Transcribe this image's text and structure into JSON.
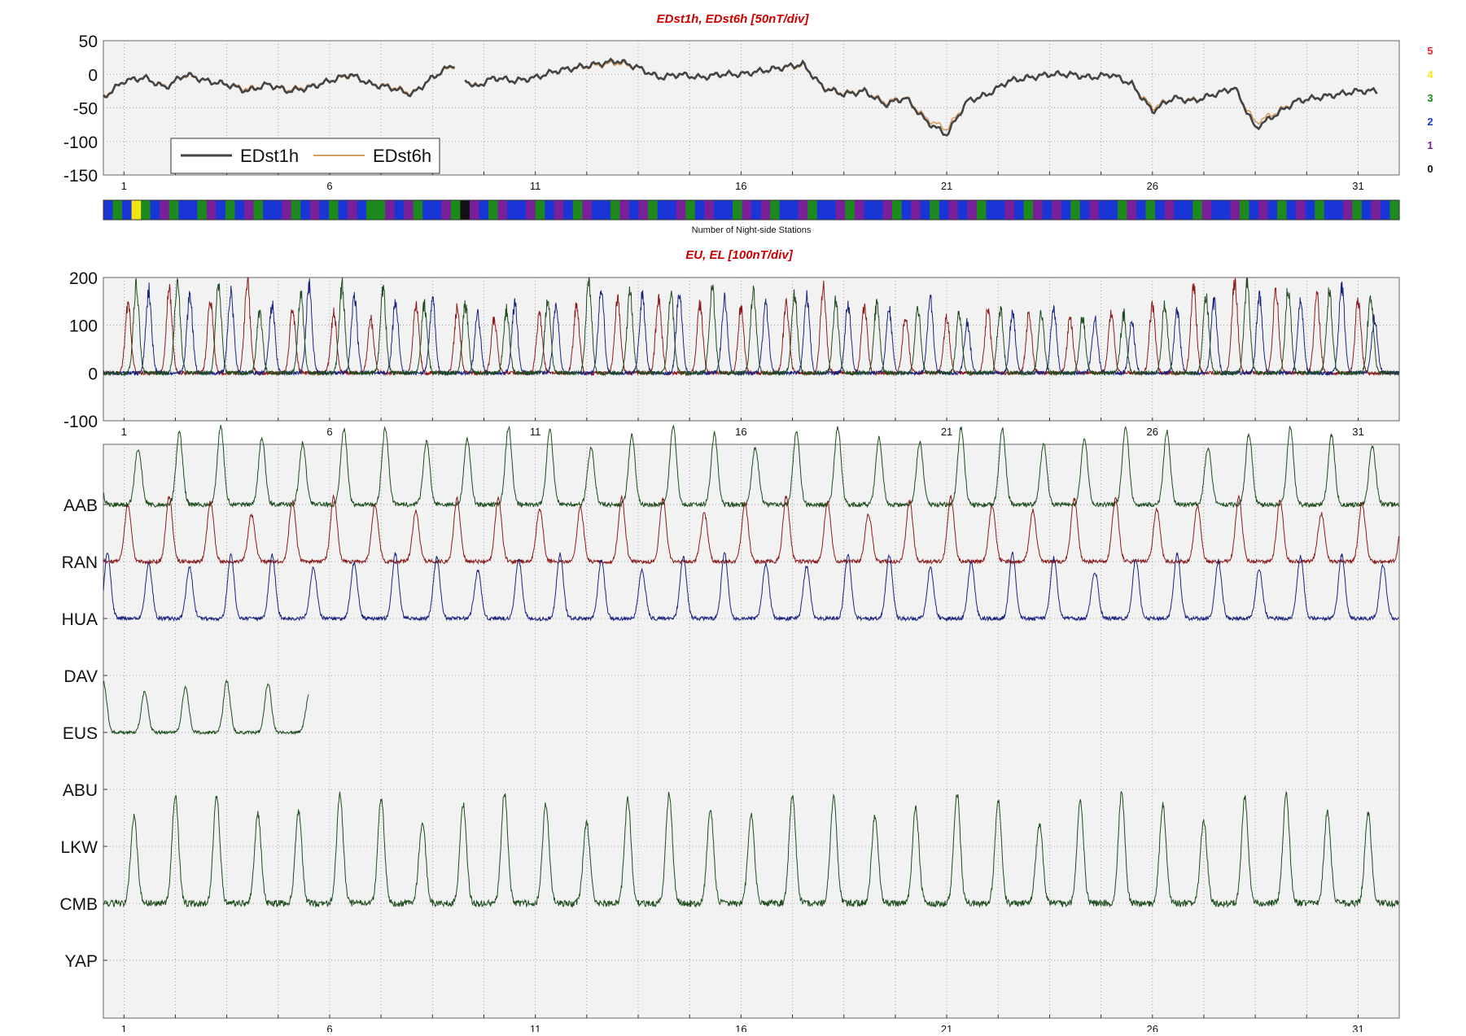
{
  "colors": {
    "title": "#cc0000",
    "panel_bg": "#f2f2f2",
    "grid": "#8a8a8a",
    "edst1h": "#444444",
    "edst6h": "#d9a066",
    "red": "#8b1a1a",
    "blue": "#1a237e",
    "green": "#1e4d1e"
  },
  "chart_data": [
    {
      "type": "line",
      "title": "EDst1h, EDst6h [50nT/div]",
      "ylim": [
        -150,
        50
      ],
      "yticks": [
        "50",
        "0",
        "-50",
        "-100",
        "-150"
      ],
      "xlim": [
        0.5,
        32
      ],
      "xticks": [
        "1",
        "6",
        "11",
        "16",
        "21",
        "26",
        "31"
      ],
      "legend": {
        "placement": "lower-left",
        "entries": [
          "EDst1h",
          "EDst6h"
        ]
      },
      "grid": true,
      "series": [
        {
          "name": "EDst1h",
          "color": "#444444",
          "x": [
            0.5,
            1,
            1.5,
            2,
            2.5,
            3,
            3.5,
            4,
            4.5,
            5,
            5.5,
            6,
            6.5,
            7,
            7.5,
            8,
            8.5,
            9,
            9.5,
            10,
            10.5,
            11,
            11.5,
            12,
            12.5,
            13,
            13.5,
            14,
            14.5,
            15,
            15.5,
            16,
            16.5,
            17,
            17.5,
            18,
            18.5,
            19,
            19.5,
            20,
            20.5,
            21,
            21.5,
            22,
            22.5,
            23,
            23.5,
            24,
            24.5,
            25,
            25.5,
            26,
            26.5,
            27,
            27.5,
            28,
            28.5,
            29,
            29.5,
            30,
            30.5,
            31,
            31.5
          ],
          "y": [
            -35,
            -10,
            -5,
            -20,
            0,
            -10,
            -15,
            -25,
            -15,
            -25,
            -20,
            -10,
            0,
            -15,
            -20,
            -30,
            -5,
            15,
            -20,
            -5,
            -10,
            -5,
            5,
            10,
            15,
            20,
            10,
            -5,
            0,
            -5,
            0,
            0,
            5,
            10,
            15,
            -20,
            -30,
            -25,
            -45,
            -35,
            -70,
            -90,
            -40,
            -30,
            -10,
            -5,
            0,
            0,
            -5,
            0,
            -15,
            -55,
            -35,
            -40,
            -30,
            -20,
            -80,
            -60,
            -40,
            -35,
            -30,
            -25,
            -25
          ]
        },
        {
          "name": "EDst6h",
          "color": "#d9a066",
          "x": [
            0.5,
            1,
            1.5,
            2,
            2.5,
            3,
            3.5,
            4,
            4.5,
            5,
            5.5,
            6,
            6.5,
            7,
            7.5,
            8,
            8.5,
            9,
            9.5,
            10,
            10.5,
            11,
            11.5,
            12,
            12.5,
            13,
            13.5,
            14,
            14.5,
            15,
            15.5,
            16,
            16.5,
            17,
            17.5,
            18,
            18.5,
            19,
            19.5,
            20,
            20.5,
            21,
            21.5,
            22,
            22.5,
            23,
            23.5,
            24,
            24.5,
            25,
            25.5,
            26,
            26.5,
            27,
            27.5,
            28,
            28.5,
            29,
            29.5,
            30,
            30.5,
            31,
            31.5
          ],
          "y": [
            -33,
            -10,
            -6,
            -18,
            -2,
            -10,
            -14,
            -22,
            -15,
            -23,
            -18,
            -10,
            -2,
            -14,
            -18,
            -28,
            -6,
            13,
            -18,
            -6,
            -9,
            -5,
            4,
            9,
            13,
            17,
            9,
            -5,
            -1,
            -5,
            -1,
            0,
            4,
            9,
            13,
            -19,
            -28,
            -24,
            -42,
            -34,
            -66,
            -82,
            -40,
            -30,
            -11,
            -6,
            -1,
            -1,
            -5,
            -1,
            -15,
            -50,
            -35,
            -38,
            -30,
            -21,
            -72,
            -57,
            -39,
            -34,
            -29,
            -25,
            -25
          ]
        }
      ]
    },
    {
      "type": "heatmap",
      "xlabel": "Number of Night-side Stations",
      "legend": {
        "placement": "right",
        "entries": [
          {
            "label": "5",
            "color": "#e8252a"
          },
          {
            "label": "4",
            "color": "#f5e414"
          },
          {
            "label": "3",
            "color": "#1c8a1c"
          },
          {
            "label": "2",
            "color": "#1a35d6"
          },
          {
            "label": "1",
            "color": "#7a1f9a"
          },
          {
            "label": "0",
            "color": "#111111"
          }
        ]
      },
      "xlim": [
        0.5,
        32
      ],
      "values": [
        2,
        3,
        2,
        4,
        3,
        2,
        1,
        3,
        2,
        2,
        3,
        1,
        2,
        3,
        2,
        1,
        3,
        2,
        2,
        1,
        3,
        2,
        1,
        2,
        3,
        2,
        1,
        2,
        3,
        3,
        1,
        2,
        1,
        3,
        2,
        2,
        1,
        3,
        0,
        1,
        2,
        3,
        1,
        2,
        2,
        1,
        3,
        2,
        1,
        2,
        3,
        1,
        2,
        2,
        3,
        1,
        2,
        1,
        3,
        2,
        2,
        1,
        3,
        2,
        1,
        2,
        2,
        3,
        1,
        2,
        1,
        3,
        2,
        2,
        1,
        3,
        2,
        2,
        1,
        3,
        1,
        2,
        2,
        1,
        3,
        2,
        1,
        2,
        3,
        2,
        1,
        2,
        1,
        3,
        2,
        2,
        1,
        2,
        3,
        1,
        2,
        1,
        2,
        3,
        2,
        1,
        2,
        2,
        3,
        1,
        2,
        3,
        2,
        1,
        2,
        2,
        3,
        1,
        2,
        2,
        1,
        3,
        2,
        1,
        2,
        3,
        2,
        1,
        2,
        3,
        2,
        2,
        1,
        3,
        2,
        1,
        2,
        3
      ]
    },
    {
      "type": "line",
      "title": "EU, EL   [100nT/div]",
      "ylim": [
        -100,
        200
      ],
      "yticks": [
        "200",
        "100",
        "0",
        "-100"
      ],
      "xlim": [
        0.5,
        32
      ],
      "xticks": [
        "1",
        "6",
        "11",
        "16",
        "21",
        "26",
        "31"
      ],
      "grid": true,
      "series": [
        {
          "color": "#8b1a1a",
          "peak_days": [
            1.1,
            2.1,
            3.1,
            4.0,
            5.1,
            6.1,
            7.0,
            8.1,
            9.1,
            10.0,
            11.1,
            12.0,
            13.0,
            14.0,
            15.0,
            16.0,
            17.1,
            18.0,
            19.0,
            20.0,
            21.0,
            22.0,
            23.0,
            24.0,
            25.0,
            26.0,
            27.0,
            28.0,
            29.0,
            30.0,
            31.0
          ],
          "peak_values": [
            150,
            180,
            160,
            200,
            140,
            130,
            120,
            150,
            140,
            120,
            130,
            150,
            160,
            170,
            150,
            140,
            150,
            190,
            150,
            130,
            120,
            140,
            130,
            120,
            130,
            150,
            190,
            200,
            180,
            170,
            160
          ]
        },
        {
          "color": "#1a237e",
          "peak_days": [
            1.6,
            2.6,
            3.6,
            4.6,
            5.5,
            6.6,
            7.6,
            8.5,
            9.6,
            10.5,
            11.5,
            12.6,
            13.6,
            14.5,
            15.6,
            16.6,
            17.6,
            18.6,
            19.6,
            20.6,
            21.5,
            22.6,
            23.6,
            24.6,
            25.5,
            26.6,
            27.5,
            28.6,
            29.6,
            30.6,
            31.4
          ],
          "peak_values": [
            180,
            170,
            180,
            150,
            190,
            170,
            160,
            160,
            130,
            150,
            150,
            190,
            170,
            180,
            160,
            150,
            170,
            150,
            140,
            160,
            110,
            130,
            140,
            120,
            110,
            140,
            160,
            170,
            160,
            190,
            120
          ]
        },
        {
          "color": "#1e4d1e",
          "peak_days": [
            1.3,
            2.3,
            3.3,
            4.3,
            5.3,
            6.3,
            7.3,
            8.3,
            9.3,
            10.3,
            11.3,
            12.3,
            13.3,
            14.3,
            15.3,
            16.3,
            17.3,
            18.3,
            19.3,
            20.3,
            21.3,
            22.3,
            23.3,
            24.3,
            25.3,
            26.3,
            27.3,
            28.3,
            29.3,
            30.3,
            31.3
          ],
          "peak_values": [
            190,
            200,
            190,
            130,
            170,
            190,
            180,
            150,
            150,
            140,
            160,
            200,
            180,
            170,
            190,
            180,
            170,
            160,
            150,
            140,
            130,
            140,
            130,
            120,
            130,
            150,
            170,
            200,
            190,
            180,
            170
          ]
        }
      ]
    },
    {
      "type": "line",
      "title": "",
      "xlim": [
        0.5,
        32
      ],
      "xticks": [
        "1",
        "6",
        "11",
        "16",
        "21",
        "26",
        "31"
      ],
      "grid": true,
      "stations": [
        "AAB",
        "RAN",
        "HUA",
        "DAV",
        "EUS",
        "ABU",
        "LKW",
        "CMB",
        "YAP"
      ],
      "series": [
        {
          "station": "AAB",
          "color": "#1e4d1e",
          "first_day": 0.5,
          "last_day": 32,
          "phase": 0.35,
          "amplitude": 1.2
        },
        {
          "station": "RAN",
          "color": "#8b1a1a",
          "first_day": 0.5,
          "last_day": 32,
          "phase": 0.1,
          "amplitude": 1.0
        },
        {
          "station": "HUA",
          "color": "#1a237e",
          "first_day": 0.5,
          "last_day": 32,
          "phase": 0.6,
          "amplitude": 1.0
        },
        {
          "station": "EUS",
          "color": "#1e4d1e",
          "first_day": 0.5,
          "last_day": 5.5,
          "phase": 0.5,
          "amplitude": 0.8
        },
        {
          "station": "CMB",
          "color": "#1e4d1e",
          "first_day": 0.5,
          "last_day": 32,
          "phase": 0.25,
          "amplitude": 1.7
        }
      ]
    }
  ]
}
